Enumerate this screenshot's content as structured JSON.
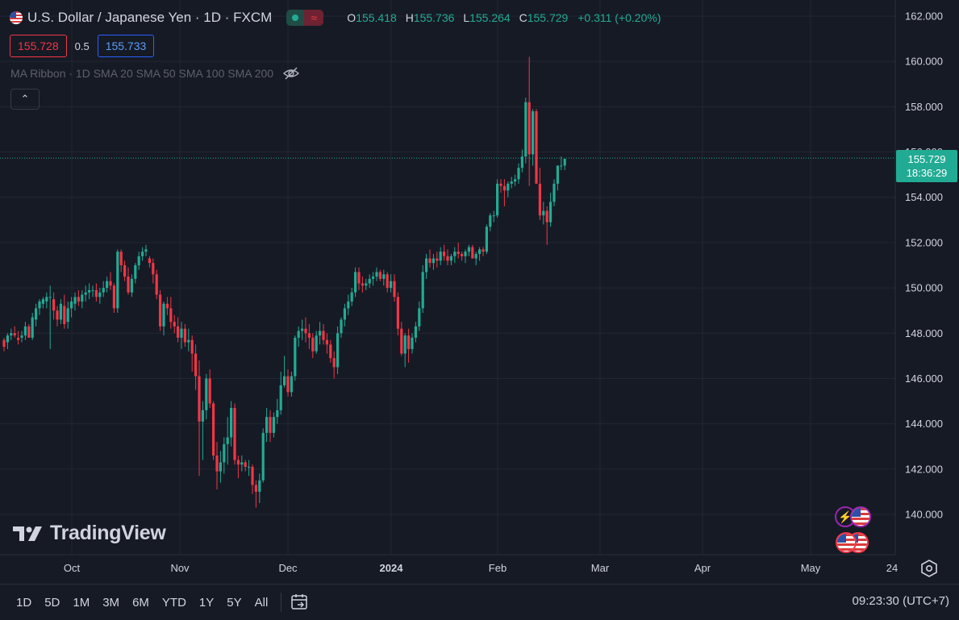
{
  "header": {
    "symbol_title": "U.S. Dollar / Japanese Yen · 1D · FXCM",
    "status_icon": "market-status-pill",
    "ohlc": {
      "o_label": "O",
      "o_value": "155.418",
      "h_label": "H",
      "h_value": "155.736",
      "l_label": "L",
      "l_value": "155.264",
      "c_label": "C",
      "c_value": "155.729",
      "change": "+0.311 (+0.20%)"
    },
    "bid": "155.728",
    "spread": "0.5",
    "ask": "155.733",
    "indicator": "MA Ribbon · 1D SMA 20 SMA 50 SMA 100 SMA 200",
    "collapse_glyph": "⌃"
  },
  "brand": {
    "logo_text": "TradingView"
  },
  "last_price": {
    "price": "155.729",
    "countdown": "18:36:29"
  },
  "toolbar": {
    "ranges": [
      "1D",
      "5D",
      "1M",
      "3M",
      "6M",
      "YTD",
      "1Y",
      "5Y",
      "All"
    ],
    "clock": "09:23:30 (UTC+7)"
  },
  "colors": {
    "background": "#161a25",
    "up": "#22ab94",
    "down": "#f23645",
    "grid": "#232632",
    "axis_text": "#d1d4dc"
  },
  "chart_data": {
    "type": "candlestick",
    "y_axis_labels": [
      "162.000",
      "160.000",
      "158.000",
      "156.000",
      "154.000",
      "152.000",
      "150.000",
      "148.000",
      "146.000",
      "144.000",
      "142.000",
      "140.000"
    ],
    "x_axis_labels": [
      "Oct",
      "Nov",
      "Dec",
      "2024",
      "Feb",
      "Mar",
      "Apr",
      "May",
      "24"
    ],
    "ylim": [
      139.0,
      162.5
    ],
    "last_price": 155.729,
    "series": [
      {
        "ohlc": [
          [
            147.7,
            147.8,
            147.2,
            147.4
          ],
          [
            147.6,
            148.0,
            147.3,
            147.9
          ],
          [
            147.9,
            148.2,
            147.7,
            148.0
          ],
          [
            148.0,
            148.3,
            147.8,
            147.9
          ],
          [
            147.8,
            148.1,
            147.5,
            147.7
          ],
          [
            147.8,
            148.1,
            147.6,
            147.9
          ],
          [
            147.9,
            148.5,
            147.7,
            148.3
          ],
          [
            148.3,
            148.4,
            147.8,
            147.8
          ],
          [
            147.8,
            148.9,
            147.7,
            148.7
          ],
          [
            148.6,
            149.3,
            148.3,
            149.1
          ],
          [
            149.1,
            149.5,
            148.8,
            149.4
          ],
          [
            149.3,
            149.6,
            149.1,
            149.5
          ],
          [
            149.4,
            149.8,
            149.1,
            149.6
          ],
          [
            149.6,
            150.1,
            147.3,
            149.6
          ],
          [
            149.5,
            149.8,
            148.6,
            149.0
          ],
          [
            149.0,
            149.2,
            148.3,
            148.6
          ],
          [
            148.6,
            149.5,
            148.4,
            149.3
          ],
          [
            149.2,
            149.7,
            148.2,
            148.4
          ],
          [
            148.5,
            149.4,
            148.2,
            149.1
          ],
          [
            149.1,
            149.6,
            148.7,
            149.4
          ],
          [
            149.3,
            149.8,
            149.0,
            149.6
          ],
          [
            149.6,
            149.9,
            149.2,
            149.4
          ],
          [
            149.4,
            149.9,
            149.1,
            149.7
          ],
          [
            149.7,
            150.1,
            149.4,
            149.8
          ],
          [
            149.8,
            150.2,
            149.5,
            149.9
          ],
          [
            149.9,
            150.1,
            149.6,
            149.9
          ],
          [
            149.9,
            150.2,
            149.4,
            149.6
          ],
          [
            149.6,
            150.0,
            149.3,
            149.8
          ],
          [
            149.8,
            150.3,
            149.6,
            150.0
          ],
          [
            150.0,
            150.5,
            149.8,
            150.3
          ],
          [
            150.3,
            150.7,
            149.9,
            150.1
          ],
          [
            150.1,
            150.2,
            148.9,
            149.1
          ],
          [
            149.1,
            151.7,
            148.9,
            151.6
          ],
          [
            151.6,
            151.7,
            150.7,
            151.0
          ],
          [
            151.0,
            151.2,
            150.3,
            150.5
          ],
          [
            150.5,
            150.9,
            149.7,
            149.8
          ],
          [
            149.8,
            150.6,
            149.6,
            150.4
          ],
          [
            150.4,
            151.1,
            150.2,
            151.0
          ],
          [
            151.0,
            151.6,
            150.8,
            151.4
          ],
          [
            151.4,
            151.8,
            151.2,
            151.6
          ],
          [
            151.6,
            151.9,
            151.4,
            151.7
          ],
          [
            151.3,
            151.4,
            150.9,
            151.1
          ],
          [
            151.1,
            151.3,
            150.2,
            150.6
          ],
          [
            150.6,
            150.8,
            149.5,
            149.7
          ],
          [
            149.7,
            149.9,
            148.1,
            148.3
          ],
          [
            148.3,
            149.4,
            147.9,
            149.3
          ],
          [
            149.3,
            149.6,
            148.8,
            149.1
          ],
          [
            149.1,
            149.6,
            148.2,
            148.5
          ],
          [
            148.5,
            148.8,
            148.0,
            148.3
          ],
          [
            148.3,
            148.7,
            147.6,
            147.8
          ],
          [
            147.8,
            148.5,
            147.3,
            148.2
          ],
          [
            148.2,
            148.4,
            147.4,
            147.6
          ],
          [
            147.6,
            148.2,
            147.2,
            147.7
          ],
          [
            147.7,
            147.9,
            146.3,
            147.1
          ],
          [
            147.1,
            147.5,
            145.5,
            146.1
          ],
          [
            146.1,
            146.8,
            141.7,
            144.1
          ],
          [
            144.1,
            145.0,
            142.4,
            144.6
          ],
          [
            144.6,
            146.2,
            144.2,
            146.0
          ],
          [
            146.0,
            146.4,
            144.7,
            144.9
          ],
          [
            144.9,
            145.0,
            142.4,
            142.6
          ],
          [
            142.6,
            143.2,
            141.1,
            141.9
          ],
          [
            141.9,
            142.8,
            141.4,
            142.3
          ],
          [
            142.3,
            143.4,
            141.8,
            143.1
          ],
          [
            143.1,
            144.3,
            142.2,
            143.4
          ],
          [
            143.4,
            145.0,
            143.0,
            144.7
          ],
          [
            144.7,
            144.9,
            142.2,
            142.4
          ],
          [
            142.4,
            142.6,
            141.6,
            142.2
          ],
          [
            142.2,
            142.6,
            141.9,
            142.3
          ],
          [
            142.3,
            142.4,
            141.9,
            142.1
          ],
          [
            142.1,
            142.4,
            141.7,
            142.1
          ],
          [
            142.1,
            142.2,
            140.9,
            141.3
          ],
          [
            141.3,
            141.5,
            140.3,
            141.0
          ],
          [
            141.0,
            141.8,
            140.5,
            141.5
          ],
          [
            141.5,
            143.8,
            141.4,
            143.6
          ],
          [
            143.6,
            144.7,
            143.2,
            144.3
          ],
          [
            144.3,
            144.6,
            143.2,
            143.6
          ],
          [
            143.6,
            144.5,
            143.4,
            144.3
          ],
          [
            144.3,
            145.1,
            144.0,
            144.6
          ],
          [
            144.6,
            146.3,
            144.4,
            145.7
          ],
          [
            145.7,
            147.0,
            145.6,
            146.1
          ],
          [
            146.1,
            146.4,
            145.2,
            145.4
          ],
          [
            145.4,
            146.3,
            145.2,
            146.1
          ],
          [
            146.1,
            147.9,
            145.9,
            147.8
          ],
          [
            147.8,
            148.3,
            147.4,
            148.1
          ],
          [
            148.1,
            148.6,
            147.7,
            148.2
          ],
          [
            148.2,
            148.7,
            147.6,
            148.0
          ],
          [
            148.0,
            148.4,
            147.3,
            147.8
          ],
          [
            147.8,
            148.0,
            146.9,
            147.2
          ],
          [
            147.2,
            148.1,
            147.1,
            147.9
          ],
          [
            147.9,
            148.5,
            147.5,
            148.1
          ],
          [
            148.1,
            148.4,
            147.5,
            147.7
          ],
          [
            147.7,
            148.0,
            147.1,
            147.5
          ],
          [
            147.5,
            147.7,
            146.7,
            146.9
          ],
          [
            146.9,
            147.2,
            146.0,
            146.5
          ],
          [
            146.5,
            148.3,
            146.2,
            148.0
          ],
          [
            148.0,
            148.7,
            147.8,
            148.6
          ],
          [
            148.6,
            149.3,
            148.3,
            149.1
          ],
          [
            149.1,
            149.7,
            148.8,
            149.4
          ],
          [
            149.4,
            150.0,
            149.2,
            149.8
          ],
          [
            149.8,
            150.9,
            149.6,
            150.7
          ],
          [
            150.7,
            150.9,
            149.9,
            150.2
          ],
          [
            150.2,
            150.5,
            149.8,
            150.1
          ],
          [
            150.1,
            150.4,
            149.9,
            150.2
          ],
          [
            150.2,
            150.6,
            150.0,
            150.4
          ],
          [
            150.4,
            150.7,
            150.1,
            150.5
          ],
          [
            150.5,
            150.9,
            150.3,
            150.7
          ],
          [
            150.7,
            150.8,
            150.3,
            150.4
          ],
          [
            150.4,
            150.8,
            150.1,
            150.6
          ],
          [
            150.6,
            150.7,
            149.8,
            150.0
          ],
          [
            150.0,
            150.6,
            149.8,
            150.3
          ],
          [
            150.3,
            150.6,
            149.4,
            149.6
          ],
          [
            149.6,
            149.8,
            147.9,
            148.2
          ],
          [
            148.2,
            148.5,
            147.0,
            147.1
          ],
          [
            147.1,
            148.0,
            146.5,
            147.9
          ],
          [
            147.9,
            148.2,
            146.7,
            147.3
          ],
          [
            147.3,
            148.0,
            147.1,
            147.8
          ],
          [
            147.8,
            148.5,
            147.6,
            148.3
          ],
          [
            148.3,
            149.4,
            148.1,
            149.1
          ],
          [
            149.1,
            151.0,
            148.9,
            150.7
          ],
          [
            150.7,
            151.5,
            150.4,
            151.3
          ],
          [
            151.3,
            151.7,
            150.9,
            151.1
          ],
          [
            151.1,
            151.5,
            150.8,
            151.3
          ],
          [
            151.3,
            151.6,
            150.9,
            151.2
          ],
          [
            151.2,
            151.8,
            151.0,
            151.6
          ],
          [
            151.6,
            151.9,
            151.2,
            151.4
          ],
          [
            151.4,
            151.7,
            151.0,
            151.2
          ],
          [
            151.2,
            151.5,
            151.0,
            151.4
          ],
          [
            151.4,
            151.8,
            151.1,
            151.6
          ],
          [
            151.6,
            152.0,
            151.3,
            151.5
          ],
          [
            151.5,
            151.6,
            151.2,
            151.4
          ],
          [
            151.4,
            151.7,
            151.1,
            151.6
          ],
          [
            151.6,
            151.9,
            151.4,
            151.8
          ],
          [
            151.8,
            151.9,
            151.3,
            151.3
          ],
          [
            151.3,
            151.6,
            151.0,
            151.5
          ],
          [
            151.5,
            151.8,
            151.2,
            151.7
          ],
          [
            151.7,
            151.8,
            151.4,
            151.6
          ],
          [
            151.6,
            152.8,
            151.5,
            152.7
          ],
          [
            152.7,
            153.3,
            152.5,
            153.2
          ],
          [
            153.2,
            153.4,
            152.9,
            153.2
          ],
          [
            153.2,
            154.8,
            153.1,
            154.6
          ],
          [
            154.6,
            154.8,
            154.2,
            154.5
          ],
          [
            154.5,
            154.8,
            153.6,
            154.3
          ],
          [
            154.3,
            154.7,
            154.0,
            154.6
          ],
          [
            154.6,
            154.9,
            154.4,
            154.7
          ],
          [
            154.7,
            155.0,
            154.5,
            154.8
          ],
          [
            154.8,
            155.5,
            154.6,
            155.3
          ],
          [
            155.3,
            156.1,
            155.1,
            155.8
          ],
          [
            155.8,
            158.4,
            155.5,
            158.2
          ],
          [
            158.2,
            160.2,
            154.5,
            155.9
          ],
          [
            155.9,
            157.9,
            155.4,
            157.8
          ],
          [
            157.8,
            157.9,
            154.6,
            154.6
          ],
          [
            154.6,
            155.3,
            153.0,
            153.2
          ],
          [
            153.2,
            153.8,
            152.8,
            153.4
          ],
          [
            153.4,
            153.6,
            151.9,
            152.9
          ],
          [
            152.9,
            154.2,
            152.7,
            153.8
          ],
          [
            153.8,
            154.8,
            153.6,
            154.6
          ],
          [
            154.6,
            155.4,
            154.3,
            155.4
          ],
          [
            155.4,
            155.8,
            155.2,
            155.4
          ],
          [
            155.4,
            155.7,
            155.2,
            155.7
          ]
        ]
      }
    ]
  }
}
